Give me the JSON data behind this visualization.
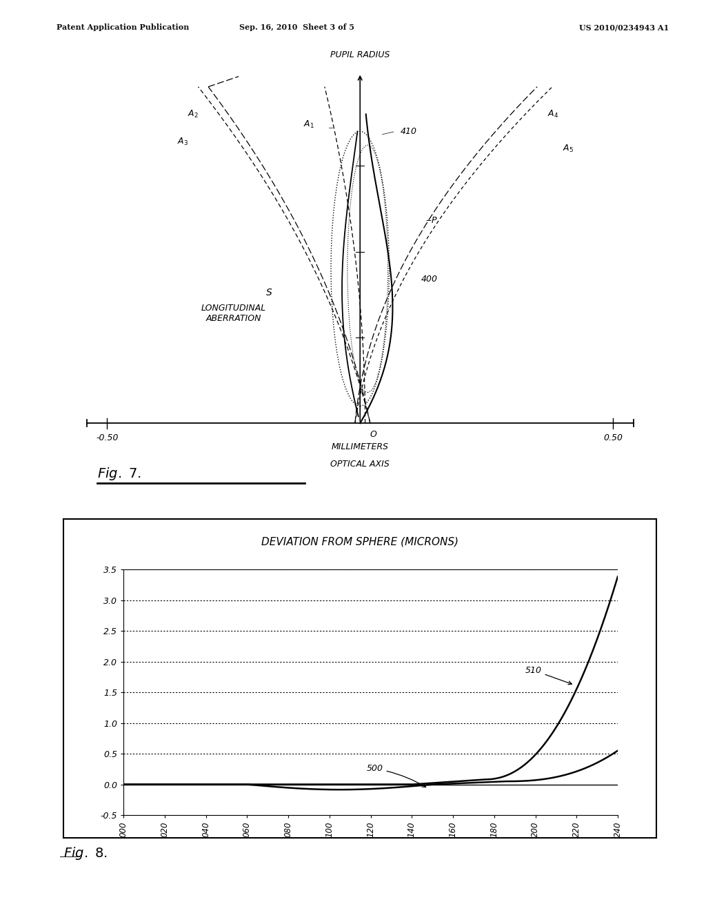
{
  "bg_color": "#ffffff",
  "header_left": "Patent Application Publication",
  "header_mid": "Sep. 16, 2010  Sheet 3 of 5",
  "header_right": "US 2010/0234943 A1",
  "fig7_label": "FIG. 7.",
  "fig8_title": "DEVIATION FROM SPHERE (MICRONS)",
  "fig8_yticks": [
    -0.5,
    0.0,
    0.5,
    1.0,
    1.5,
    2.0,
    2.5,
    3.0,
    3.5
  ],
  "fig8_ytick_labels": [
    "-0.5",
    "0.0",
    "0.5",
    "1.0",
    "1.5",
    "2.0",
    "2.5",
    "3.0",
    "3.5"
  ],
  "fig8_xtick_labels": [
    "000",
    "020",
    "040",
    "060",
    "080",
    "100",
    "120",
    "140",
    "160",
    "180",
    "200",
    "220",
    "240"
  ],
  "fig8_label": "FIG. 8."
}
